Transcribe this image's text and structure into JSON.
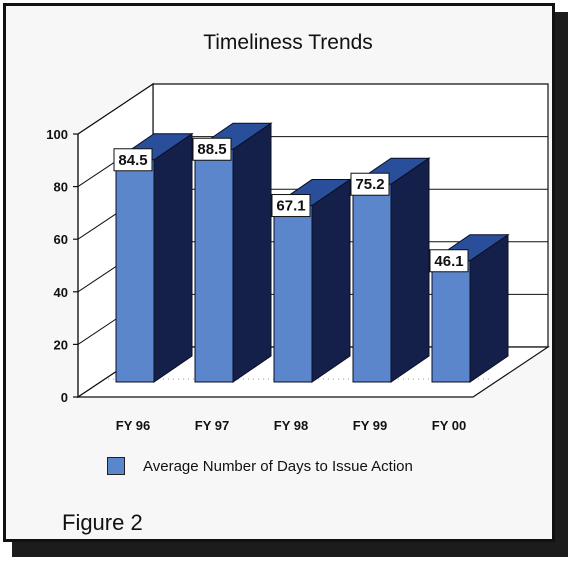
{
  "chart_data": {
    "type": "bar",
    "title": "Timeliness Trends",
    "categories": [
      "FY 96",
      "FY 97",
      "FY 98",
      "FY 99",
      "FY 00"
    ],
    "series": [
      {
        "name": "Average Number of Days to Issue Action",
        "values": [
          84.5,
          88.5,
          67.1,
          75.2,
          46.1
        ]
      }
    ],
    "y_ticks": [
      "0",
      "20",
      "40",
      "60",
      "80",
      "100"
    ],
    "ylim": [
      0,
      100
    ],
    "grid": true,
    "legend_position": "bottom",
    "style": "3d",
    "colors": {
      "bar_front": "#5b86cc",
      "bar_side": "#15204a",
      "bar_top": "#2a4f9a"
    }
  },
  "caption": "Figure 2"
}
